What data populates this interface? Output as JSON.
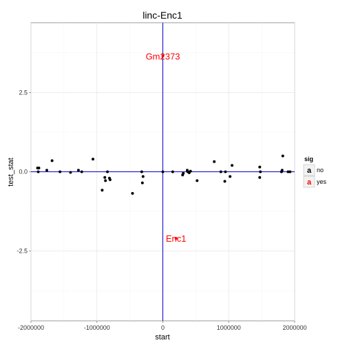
{
  "chart_data": {
    "type": "scatter",
    "title": "linc-Enc1",
    "xlabel": "start",
    "ylabel": "test_stat",
    "xlim": [
      -2000000,
      2000000
    ],
    "ylim": [
      -4.7,
      4.7
    ],
    "x_ticks": [
      -2000000,
      -1000000,
      0,
      1000000,
      2000000
    ],
    "x_tick_labels": [
      "-2000000",
      "-1000000",
      "0",
      "1000000",
      "2000000"
    ],
    "y_ticks": [
      -2.5,
      0.0,
      2.5
    ],
    "y_tick_labels": [
      "-2.5",
      "0.0",
      "2.5"
    ],
    "grid": true,
    "reference_lines": {
      "vertical_x": 0,
      "horizontal_y": 0,
      "color": "#0000cc"
    },
    "legend": {
      "title": "sig",
      "placement": "right",
      "key_glyph": "a",
      "entries": [
        {
          "label": "no",
          "color": "#000000"
        },
        {
          "label": "yes",
          "color": "#ff0000"
        }
      ]
    },
    "annotations": [
      {
        "text": "Gm2373",
        "x": 0,
        "y": 3.65,
        "color": "#ff0000"
      },
      {
        "text": "Enc1",
        "x": 200000,
        "y": -2.1,
        "color": "#ff0000"
      }
    ],
    "series": [
      {
        "name": "no",
        "color": "#000000",
        "points": [
          {
            "x": -1900000,
            "y": 0.12
          },
          {
            "x": -1880000,
            "y": 0.12
          },
          {
            "x": -1890000,
            "y": 0.0
          },
          {
            "x": -1760000,
            "y": 0.05
          },
          {
            "x": -1680000,
            "y": 0.35
          },
          {
            "x": -1560000,
            "y": 0.0
          },
          {
            "x": -1400000,
            "y": -0.02
          },
          {
            "x": -1280000,
            "y": 0.05
          },
          {
            "x": -1230000,
            "y": 0.0
          },
          {
            "x": -1060000,
            "y": 0.4
          },
          {
            "x": -920000,
            "y": -0.58
          },
          {
            "x": -880000,
            "y": -0.18
          },
          {
            "x": -870000,
            "y": -0.28
          },
          {
            "x": -840000,
            "y": 0.0
          },
          {
            "x": -810000,
            "y": -0.2
          },
          {
            "x": -800000,
            "y": -0.25
          },
          {
            "x": -460000,
            "y": -0.68
          },
          {
            "x": -320000,
            "y": 0.0
          },
          {
            "x": -310000,
            "y": -0.35
          },
          {
            "x": -300000,
            "y": -0.15
          },
          {
            "x": 0,
            "y": 0.0
          },
          {
            "x": 150000,
            "y": 0.0
          },
          {
            "x": 300000,
            "y": -0.1
          },
          {
            "x": 310000,
            "y": -0.05
          },
          {
            "x": 370000,
            "y": 0.05
          },
          {
            "x": 380000,
            "y": 0.0
          },
          {
            "x": 400000,
            "y": -0.03
          },
          {
            "x": 420000,
            "y": 0.02
          },
          {
            "x": 520000,
            "y": -0.28
          },
          {
            "x": 780000,
            "y": 0.32
          },
          {
            "x": 880000,
            "y": 0.0
          },
          {
            "x": 940000,
            "y": -0.3
          },
          {
            "x": 950000,
            "y": 0.0
          },
          {
            "x": 1020000,
            "y": -0.15
          },
          {
            "x": 1050000,
            "y": 0.2
          },
          {
            "x": 1470000,
            "y": 0.15
          },
          {
            "x": 1470000,
            "y": -0.18
          },
          {
            "x": 1480000,
            "y": 0.0
          },
          {
            "x": 1800000,
            "y": 0.0
          },
          {
            "x": 1810000,
            "y": 0.05
          },
          {
            "x": 1820000,
            "y": 0.5
          },
          {
            "x": 1900000,
            "y": 0.0
          },
          {
            "x": 1930000,
            "y": 0.0
          }
        ]
      },
      {
        "name": "yes",
        "color": "#ff0000",
        "points": [
          {
            "x": 0,
            "y": 3.65
          },
          {
            "x": 200000,
            "y": -2.1
          }
        ]
      }
    ]
  }
}
